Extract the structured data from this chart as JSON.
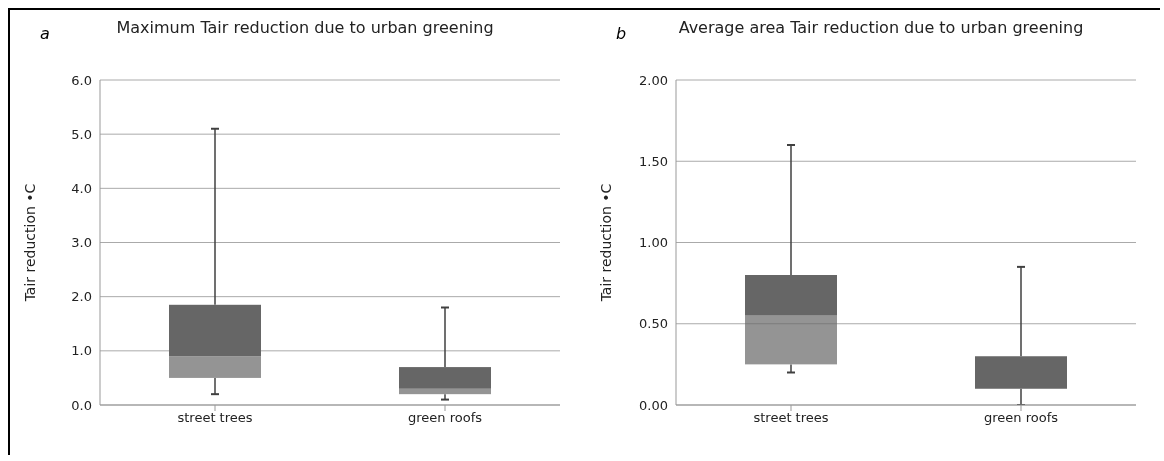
{
  "chart_data": [
    {
      "type": "box",
      "title": "Maximum Tair reduction due to urban greening",
      "ylabel": "Tair reduction •C",
      "annotations": [
        "a"
      ],
      "categories": [
        "street trees",
        "green roofs"
      ],
      "series": [
        {
          "color": "#666666",
          "boxes": [
            {
              "low": 0.2,
              "q1": 0.5,
              "median": 0.9,
              "q3": 1.85,
              "high": 5.1
            },
            {
              "low": 0.1,
              "q1": 0.2,
              "median": 0.3,
              "q3": 0.7,
              "high": 1.8
            }
          ]
        }
      ],
      "ylim": [
        0,
        6
      ],
      "yticks": [
        {
          "value": 0,
          "label": "0.0"
        },
        {
          "value": 1,
          "label": "1.0"
        },
        {
          "value": 2,
          "label": "2.0"
        },
        {
          "value": 3,
          "label": "3.0"
        },
        {
          "value": 4,
          "label": "4.0"
        },
        {
          "value": 5,
          "label": "5.0"
        },
        {
          "value": 6,
          "label": "6.0"
        }
      ],
      "grid": "y"
    },
    {
      "type": "box",
      "title": "Average area Tair reduction due to urban greening",
      "ylabel": "Tair reduction •C",
      "annotations": [
        "b"
      ],
      "categories": [
        "street trees",
        "green roofs"
      ],
      "series": [
        {
          "color": "#666666",
          "boxes": [
            {
              "low": 0.2,
              "q1": 0.25,
              "median": 0.55,
              "q3": 0.8,
              "high": 1.6
            },
            {
              "low": 0,
              "q1": 0.1,
              "median": 0.1,
              "q3": 0.3,
              "high": 0.85
            }
          ]
        }
      ],
      "ylim": [
        0,
        2
      ],
      "yticks": [
        {
          "value": 0,
          "label": "0.00"
        },
        {
          "value": 0.5,
          "label": "0.50"
        },
        {
          "value": 1,
          "label": "1.00"
        },
        {
          "value": 1.5,
          "label": "1.50"
        },
        {
          "value": 2,
          "label": "2.00"
        }
      ],
      "grid": "y"
    }
  ]
}
